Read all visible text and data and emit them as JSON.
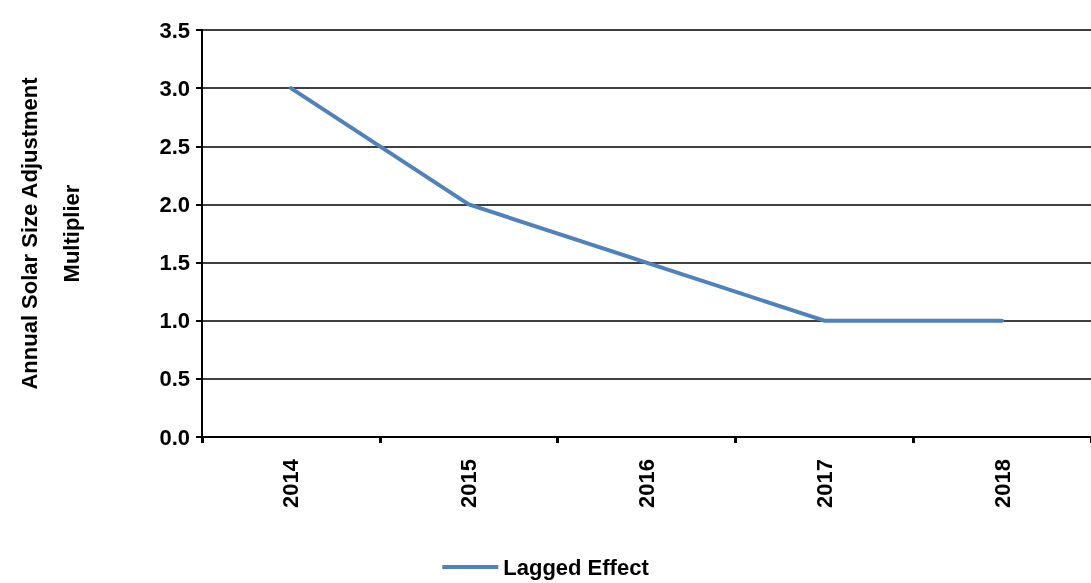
{
  "chart_data": {
    "type": "line",
    "ylabel": "Annual Solar Size Adjustment\nMultiplier",
    "categories": [
      "2014",
      "2015",
      "2016",
      "2017",
      "2018"
    ],
    "series": [
      {
        "name": "Lagged Effect",
        "color": "#4f81bd",
        "values": [
          3.0,
          2.0,
          1.5,
          1.0,
          1.0
        ]
      }
    ],
    "ylim": [
      0,
      3.5
    ],
    "yticks": [
      {
        "value": 0,
        "label": "0.0"
      },
      {
        "value": 0.5,
        "label": "0.5"
      },
      {
        "value": 1,
        "label": "1.0"
      },
      {
        "value": 1.5,
        "label": "1.5"
      },
      {
        "value": 2,
        "label": "2.0"
      },
      {
        "value": 2.5,
        "label": "2.5"
      },
      {
        "value": 3,
        "label": "3.0"
      },
      {
        "value": 3.5,
        "label": "3.5"
      }
    ],
    "grid": "y",
    "legend": "bottom",
    "marker": "none",
    "line_style": "solid"
  }
}
